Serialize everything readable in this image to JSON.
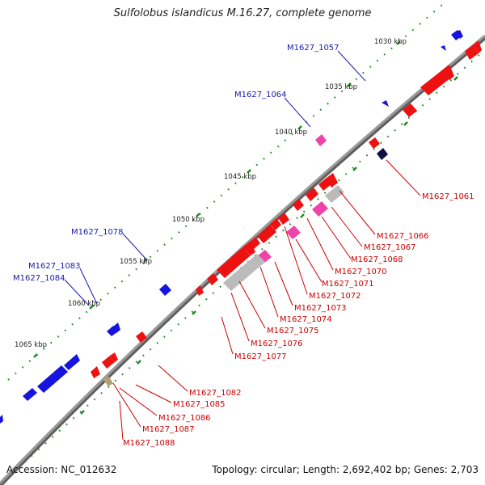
{
  "title": "Sulfolobus islandicus M.16.27, complete genome",
  "accession": "Accession: NC_012632",
  "summary": "Topology: circular; Length: 2,692,402 bp; Genes: 2,703",
  "colors": {
    "backbone": "#808080",
    "forward_gene": "#ee1111",
    "reverse_gene": "#1515dd",
    "rna_gene": "#ee44aa",
    "pseudo_gene": "#bbbbbb",
    "tick": "#228822",
    "forward_label": "#cc0000",
    "reverse_label": "#1a1aaa"
  },
  "position_labels": [
    "1030 kbp",
    "1035 kbp",
    "1040 kbp",
    "1045 kbp",
    "1050 kbp",
    "1055 kbp",
    "1060 kbp",
    "1065 kbp"
  ],
  "reverse_gene_labels": [
    "M1627_1057",
    "M1627_1064",
    "M1627_1078",
    "M1627_1083",
    "M1627_1084"
  ],
  "forward_gene_labels": [
    "M1627_1061",
    "M1627_1066",
    "M1627_1067",
    "M1627_1068",
    "M1627_1070",
    "M1627_1071",
    "M1627_1072",
    "M1627_1073",
    "M1627_1074",
    "M1627_1075",
    "M1627_1076",
    "M1627_1077",
    "M1627_1082",
    "M1627_1085",
    "M1627_1086",
    "M1627_1087",
    "M1627_1088"
  ]
}
